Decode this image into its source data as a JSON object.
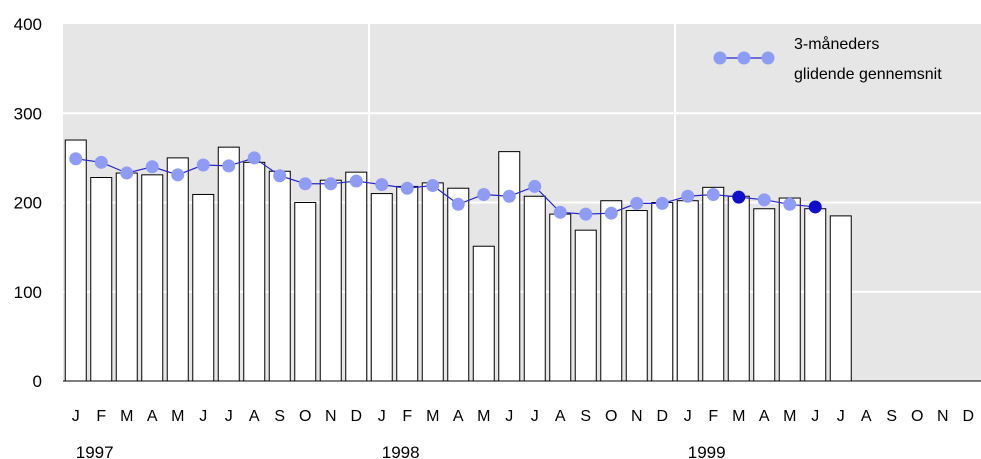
{
  "chart_data": {
    "type": "bar",
    "categories": [
      "J",
      "F",
      "M",
      "A",
      "M",
      "J",
      "J",
      "A",
      "S",
      "O",
      "N",
      "D",
      "J",
      "F",
      "M",
      "A",
      "M",
      "J",
      "J",
      "A",
      "S",
      "O",
      "N",
      "D",
      "J",
      "F",
      "M",
      "A",
      "M",
      "J",
      "J",
      "A",
      "S",
      "O",
      "N",
      "D"
    ],
    "years": [
      "1997",
      "1998",
      "1999"
    ],
    "yticks": [
      "0",
      "100",
      "200",
      "300",
      "400"
    ],
    "ylim": [
      0,
      400
    ],
    "bars": [
      270,
      228,
      233,
      231,
      250,
      209,
      262,
      245,
      235,
      200,
      225,
      234,
      210,
      218,
      222,
      216,
      151,
      257,
      207,
      187,
      169,
      202,
      191,
      200,
      202,
      217,
      207,
      193,
      205,
      193,
      185
    ],
    "moving_average": [
      249,
      245,
      233,
      240,
      231,
      242,
      241,
      250,
      230,
      221,
      221,
      224,
      220,
      216,
      219,
      198,
      209,
      207,
      218,
      189,
      187,
      188,
      199,
      199,
      207,
      209,
      206,
      203,
      198,
      195
    ],
    "highlighted_points": [
      26,
      29
    ],
    "legend": {
      "line1": "3-måneders",
      "line2": "glidende gennemsnit"
    },
    "colors": {
      "plot_bg": "#e6e6e6",
      "bar_fill": "#ffffff",
      "bar_stroke": "#000000",
      "marker": "#8f9cf6",
      "marker_highlight": "#1010cc",
      "line": "#2828c8",
      "grid": "#ffffff"
    },
    "grid": true,
    "legend_position": "top-right"
  }
}
